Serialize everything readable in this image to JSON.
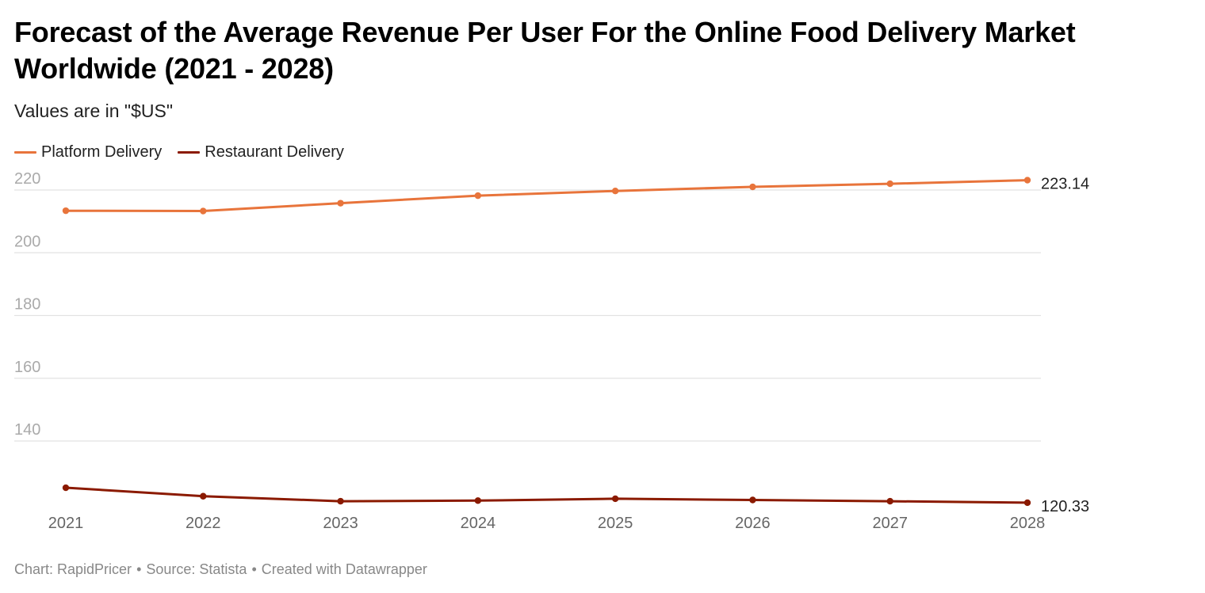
{
  "header": {
    "title": "Forecast of the Average Revenue Per User For the Online Food Delivery Market Worldwide (2021 - 2028)",
    "subtitle": "Values are in \"$US\""
  },
  "footer": {
    "chart_credit": "Chart: RapidPricer",
    "source": "Source: Statista",
    "tool": "Created with Datawrapper",
    "separator": "•"
  },
  "colors": {
    "platform": "#E8743B",
    "restaurant": "#8B1A00",
    "grid": "#E2E2E2",
    "tick_label": "#AAAAAA",
    "x_tick_label": "#666666"
  },
  "chart_data": {
    "type": "line",
    "title": "Forecast of the Average Revenue Per User For the Online Food Delivery Market Worldwide (2021 - 2028)",
    "subtitle": "Values are in \"$US\"",
    "xlabel": "",
    "ylabel": "",
    "x": [
      "2021",
      "2022",
      "2023",
      "2024",
      "2025",
      "2026",
      "2027",
      "2028"
    ],
    "yticks": [
      140,
      160,
      180,
      200,
      220
    ],
    "ylim": [
      120,
      223
    ],
    "grid": true,
    "legend_position": "top-left",
    "series": [
      {
        "name": "Platform Delivery",
        "values": [
          213.4,
          213.3,
          215.8,
          218.2,
          219.7,
          221.0,
          222.0,
          223.14
        ],
        "end_label": "223.14"
      },
      {
        "name": "Restaurant Delivery",
        "values": [
          125.1,
          122.4,
          120.8,
          121.0,
          121.6,
          121.2,
          120.8,
          120.33
        ],
        "end_label": "120.33"
      }
    ]
  }
}
